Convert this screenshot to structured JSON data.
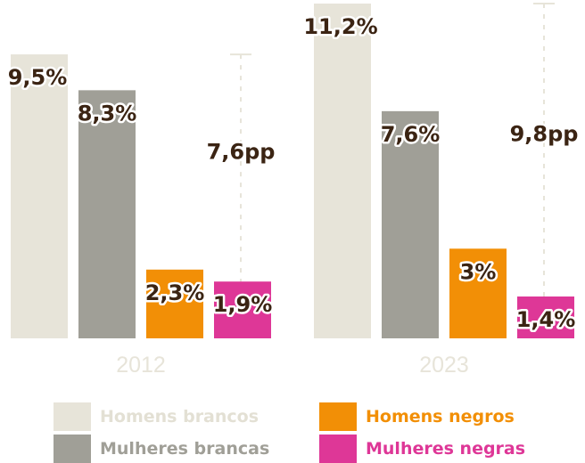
{
  "chart_data": {
    "type": "bar",
    "title": "",
    "xlabel": "",
    "ylabel": "",
    "ylim": [
      0,
      11.2
    ],
    "groups": [
      {
        "year": "2012",
        "values": [
          9.5,
          8.3,
          2.3,
          1.9
        ],
        "labels": [
          "9,5%",
          "8,3%",
          "2,3%",
          "1,9%"
        ],
        "gap_label": "7,6pp",
        "gap_from": 9.5,
        "gap_to": 1.9
      },
      {
        "year": "2023",
        "values": [
          11.2,
          7.6,
          3.0,
          1.4
        ],
        "labels": [
          "11,2%",
          "7,6%",
          "3%",
          "1,4%"
        ],
        "gap_label": "9,8pp",
        "gap_from": 11.2,
        "gap_to": 1.4
      }
    ],
    "series": [
      {
        "name": "Homens brancos",
        "color": "#e7e4d9"
      },
      {
        "name": "Mulheres brancas",
        "color": "#a09f97"
      },
      {
        "name": "Homens negros",
        "color": "#f28f06"
      },
      {
        "name": "Mulheres negras",
        "color": "#de3797"
      }
    ],
    "legend_text_colors": [
      "#e3e0d4",
      "#a09f97",
      "#f28f06",
      "#de3797"
    ],
    "dashed_line_color": "#e7e4d9"
  }
}
